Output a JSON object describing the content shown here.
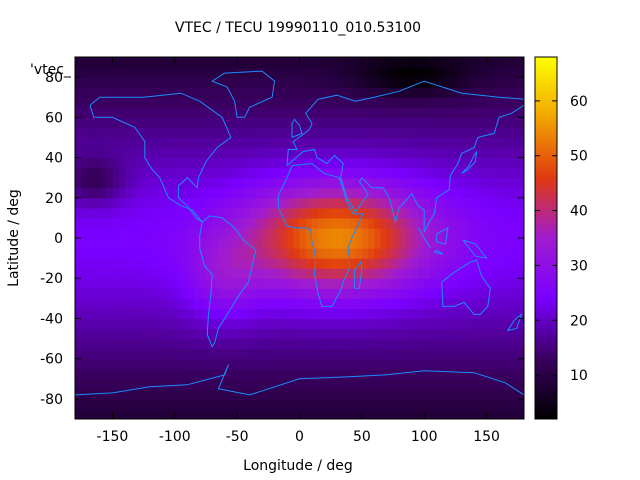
{
  "chart_data": {
    "type": "heatmap",
    "title": "VTEC / TECU 19990110_010.53100",
    "xlabel": "Longitude / deg",
    "ylabel": "Latitude / deg",
    "xlim": [
      -180,
      180
    ],
    "ylim": [
      -90,
      90
    ],
    "x_ticks": [
      -150,
      -100,
      -50,
      0,
      50,
      100,
      150
    ],
    "y_ticks": [
      -80,
      -60,
      -40,
      -20,
      0,
      20,
      40,
      60,
      80
    ],
    "legend_label": "'vtec_",
    "colorbar": {
      "range": [
        2,
        68
      ],
      "ticks": [
        10,
        20,
        30,
        40,
        50,
        60
      ],
      "colormap": [
        "#000000",
        "#3a0060",
        "#7a00ff",
        "#a01cd0",
        "#e03a10",
        "#f2a500",
        "#ffff00"
      ]
    },
    "anomaly_center": {
      "lon": 30,
      "lat": 0,
      "peak_tecu": 48
    },
    "background_tecu": 18,
    "overlay": "coastlines"
  },
  "colors": {
    "coastline": "#1a8cff",
    "frame": "#000000"
  }
}
